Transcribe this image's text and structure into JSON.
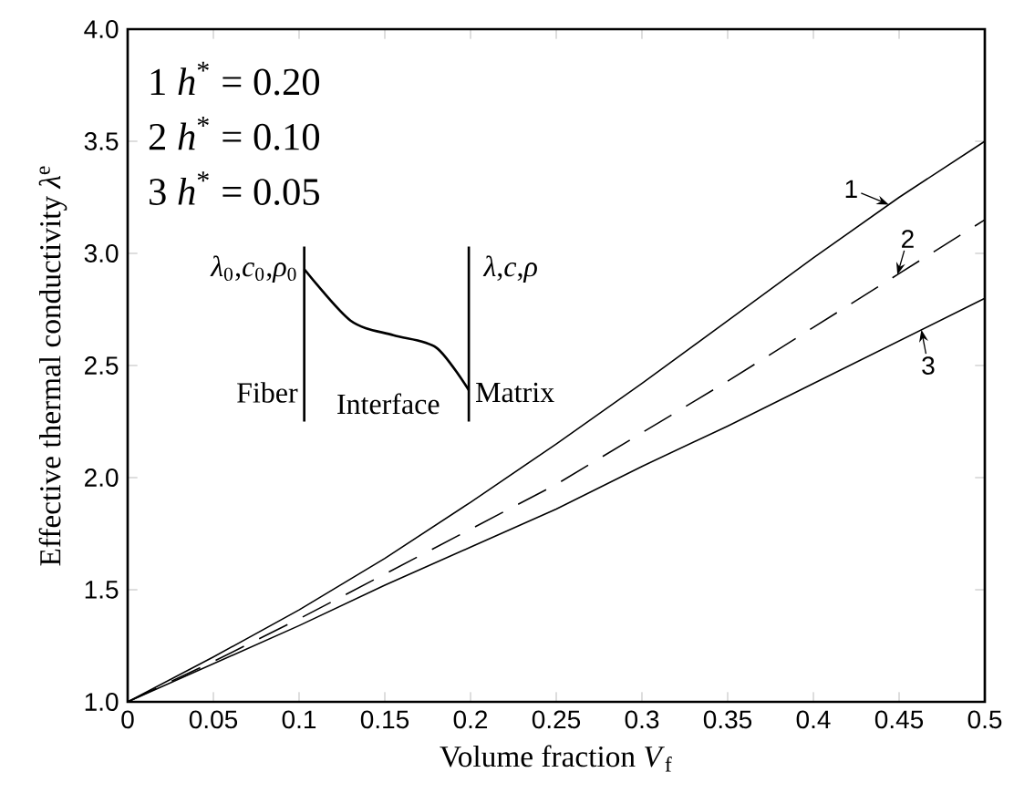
{
  "chart_data": {
    "type": "line",
    "xlabel": "Volume fraction *V*$_{f}$",
    "ylabel": "Effective thermal conductivity *λ*$^{e}$",
    "x": [
      0,
      0.05,
      0.1,
      0.15,
      0.2,
      0.25,
      0.3,
      0.35,
      0.4,
      0.45,
      0.5
    ],
    "series": [
      {
        "name": "1",
        "color": "#000000",
        "line_style": "solid",
        "values": [
          1.0,
          1.2,
          1.41,
          1.64,
          1.89,
          2.15,
          2.42,
          2.7,
          2.98,
          3.25,
          3.5
        ]
      },
      {
        "name": "2",
        "color": "#000000",
        "line_style": "dashed",
        "values": [
          1.0,
          1.18,
          1.37,
          1.57,
          1.77,
          1.97,
          2.2,
          2.43,
          2.67,
          2.91,
          3.15
        ]
      },
      {
        "name": "3",
        "color": "#000000",
        "line_style": "solid",
        "values": [
          1.0,
          1.17,
          1.34,
          1.52,
          1.69,
          1.86,
          2.05,
          2.23,
          2.42,
          2.61,
          2.8
        ]
      }
    ],
    "xlim": [
      0,
      0.5
    ],
    "ylim": [
      1.0,
      4.0
    ],
    "xticks": [
      0,
      0.05,
      0.1,
      0.15,
      0.2,
      0.25,
      0.3,
      0.35,
      0.4,
      0.45,
      0.5
    ],
    "yticks": [
      {
        "value": 1,
        "label": "1.0"
      },
      {
        "value": 1.5,
        "label": "1.5"
      },
      {
        "value": 2,
        "label": "2.0"
      },
      {
        "value": 2.5,
        "label": "2.5"
      },
      {
        "value": 3,
        "label": "3.0"
      },
      {
        "value": 3.5,
        "label": "3.5"
      },
      {
        "value": 4,
        "label": "4.0"
      }
    ],
    "grid": false,
    "marker": "none",
    "annotations": [
      "1  *h*$^{*}$ = 0.20",
      "2  *h*$^{*}$ = 0.10",
      "3  *h*$^{*}$ = 0.05",
      "*λ*$_{0}$,*c*$_{0}$,*ρ*$_{0}$",
      "*λ*,*c*,*ρ*",
      "Fiber",
      "Interface",
      "Matrix"
    ]
  }
}
